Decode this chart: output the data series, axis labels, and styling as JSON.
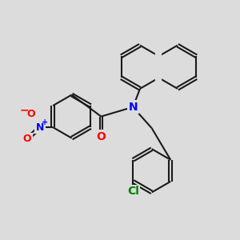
{
  "background_color": "#dcdcdc",
  "bond_color": "#1a1a1a",
  "N_color": "#0000ff",
  "O_color": "#ff0000",
  "Cl_color": "#008000",
  "figsize": [
    3.0,
    3.0
  ],
  "dpi": 100,
  "xlim": [
    0,
    10
  ],
  "ylim": [
    0,
    10
  ]
}
